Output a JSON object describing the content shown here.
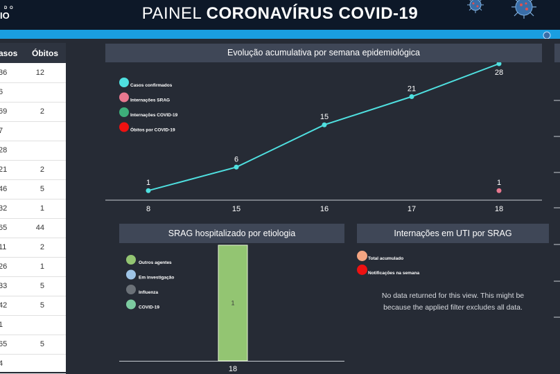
{
  "header": {
    "title_light": "PAINEL ",
    "title_bold": "CORONAVÍRUS COVID-19",
    "logo_line1": "D O",
    "logo_line2": "IO"
  },
  "left_table": {
    "col_casos": "asos",
    "col_obitos": "Óbitos",
    "rows": [
      {
        "casos": "36",
        "obitos": "12"
      },
      {
        "casos": "6",
        "obitos": ""
      },
      {
        "casos": "69",
        "obitos": "2"
      },
      {
        "casos": "7",
        "obitos": ""
      },
      {
        "casos": "28",
        "obitos": ""
      },
      {
        "casos": "21",
        "obitos": "2"
      },
      {
        "casos": "46",
        "obitos": "5"
      },
      {
        "casos": "32",
        "obitos": "1"
      },
      {
        "casos": "65",
        "obitos": "44"
      },
      {
        "casos": "11",
        "obitos": "2"
      },
      {
        "casos": "26",
        "obitos": "1"
      },
      {
        "casos": "33",
        "obitos": "5"
      },
      {
        "casos": "42",
        "obitos": "5"
      },
      {
        "casos": "1",
        "obitos": ""
      },
      {
        "casos": "65",
        "obitos": "5"
      },
      {
        "casos": "4",
        "obitos": ""
      }
    ]
  },
  "panels": {
    "evolucao_title": "Evolução acumulativa por semana epidemiológica",
    "srag_title": "SRAG hospitalizado por etiologia",
    "uti_title": "Internações em UTI por SRAG",
    "uti_nodata_line1": "No data returned for this view. This might be",
    "uti_nodata_line2": "because the applied filter excludes all data.",
    "uti_legend": [
      {
        "label": "Total acumulado",
        "color": "#f4a582"
      },
      {
        "label": "Notificações na semana",
        "color": "#ee1111"
      }
    ]
  },
  "chart_data": [
    {
      "type": "line",
      "title": "Evolução acumulativa por semana epidemiológica",
      "categories": [
        "8",
        "15",
        "16",
        "17",
        "18"
      ],
      "legend": [
        {
          "label": "Casos confirmados",
          "color": "#4fe0e0"
        },
        {
          "label": "Internações SRAG",
          "color": "#e8788f"
        },
        {
          "label": "Internações COVID-19",
          "color": "#3daf7a"
        },
        {
          "label": "Óbitos por COVID-19",
          "color": "#ee1111"
        }
      ],
      "series": [
        {
          "name": "Casos confirmados",
          "color": "#4fe0e0",
          "values": [
            1,
            6,
            15,
            21,
            28
          ]
        },
        {
          "name": "Internações SRAG",
          "color": "#e8788f",
          "values": [
            null,
            null,
            null,
            null,
            1
          ]
        }
      ],
      "ylim": [
        0,
        28
      ]
    },
    {
      "type": "bar",
      "title": "SRAG hospitalizado por etiologia",
      "categories": [
        "18"
      ],
      "legend": [
        {
          "label": "Outros agentes",
          "color": "#93c572"
        },
        {
          "label": "Em investigação",
          "color": "#9ec4e6"
        },
        {
          "label": "Influenza",
          "color": "#6b7178"
        },
        {
          "label": "COVID-19",
          "color": "#7ccba0"
        }
      ],
      "series": [
        {
          "name": "Outros agentes",
          "color": "#93c572",
          "values": [
            1
          ]
        }
      ],
      "ylim": [
        0,
        1
      ]
    }
  ]
}
